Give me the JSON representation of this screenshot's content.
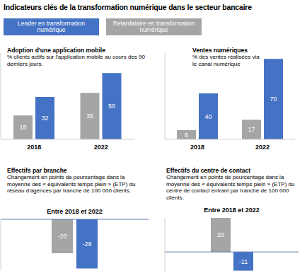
{
  "title": "Indicateurs clés de la transformation numérique dans le secteur bancaire",
  "chart_data": [
    {
      "type": "bar",
      "title": "Adoption d'une application mobile",
      "subtitle": "% clients actifs sur l'application mobile au cours des 90 derniers jours.",
      "categories": [
        "2018",
        "2022"
      ],
      "series": [
        {
          "name": "Retardataire en transformation numérique",
          "color": "#a5a5a5",
          "values": [
            18,
            35
          ]
        },
        {
          "name": "Leader en transformation numérique",
          "color": "#4472c4",
          "values": [
            32,
            50
          ]
        }
      ],
      "ylim": [
        0,
        65
      ],
      "data_labels": true,
      "tick_labels": "x",
      "grid": false
    },
    {
      "type": "bar",
      "title": "Ventes numériques",
      "subtitle": "% des ventes réalisées via le canal numérique",
      "categories": [
        "2018",
        "2022"
      ],
      "series": [
        {
          "name": "Retardataire en transformation numérique",
          "color": "#a5a5a5",
          "values": [
            8,
            17
          ]
        },
        {
          "name": "Leader en transformation numérique",
          "color": "#4472c4",
          "values": [
            40,
            70
          ]
        }
      ],
      "ylim": [
        0,
        75
      ],
      "data_labels": true,
      "tick_labels": "x",
      "grid": false
    },
    {
      "type": "bar",
      "title": "Effectifs par branche",
      "subtitle": "Changement en points de pourcentage dans la moyenne des « équivalents temps plein » (ETP) du réseau d'agences par tranche de 100 000 clients.",
      "categories": [
        "Entre 2018 et 2022"
      ],
      "series": [
        {
          "name": "Retardataire en transformation numérique",
          "color": "#a5a5a5",
          "values": [
            -20
          ]
        },
        {
          "name": "Leader en transformation numérique",
          "color": "#4472c4",
          "values": [
            -29
          ]
        }
      ],
      "ylim": [
        -30,
        0
      ],
      "data_labels": true,
      "tick_labels": "x",
      "grid": false
    },
    {
      "type": "bar",
      "title": "Effectifs du centre de contact",
      "subtitle": "Changement en points de pourcentage dans la moyenne des « équivalents temps plein » (ETP) du centre de contact entrant par tranche de 100 000 clients.",
      "categories": [
        "Entre 2018 et 2022"
      ],
      "series": [
        {
          "name": "Retardataire en transformation numérique",
          "color": "#a5a5a5",
          "values": [
            20
          ]
        },
        {
          "name": "Leader en transformation numérique",
          "color": "#4472c4",
          "values": [
            -11
          ]
        }
      ],
      "ylim": [
        -12,
        20
      ],
      "data_labels": true,
      "tick_labels": "x",
      "grid": false
    }
  ]
}
